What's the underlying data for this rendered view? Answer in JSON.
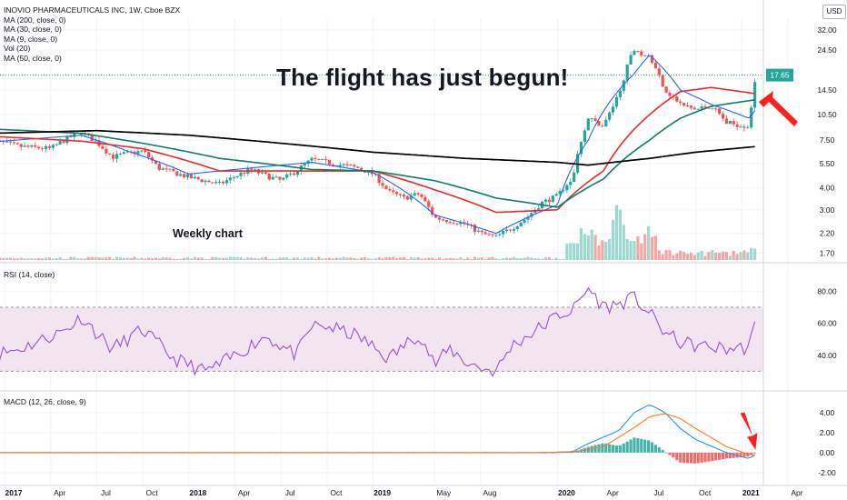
{
  "header": {
    "symbol_line": "INOVIO PHARMACEUTICALS INC, 1W, Cboe BZX",
    "indicators": [
      "MA (200, close, 0)",
      "MA (30, close, 0)",
      "MA (9, close, 0)",
      "Vol (20)",
      "MA (50, close, 0)"
    ],
    "currency": "USD"
  },
  "annotations": {
    "headline": "The flight has just begun!",
    "note": "Weekly chart",
    "arrow_color": "#ff1f1f"
  },
  "colors": {
    "up": "#26a69a",
    "down": "#ef5350",
    "ma9": "#2962ff",
    "ma30": "#e52b2b",
    "ma50": "#0f7d6a",
    "ma200": "#000000",
    "rsi": "#9c4fd6",
    "rsi_band": "#f3e5f0",
    "macd": "#2196f3",
    "signal": "#ff7a1f",
    "grid": "#f0f3fa",
    "last_price": "#26a69a"
  },
  "chart_data": [
    {
      "type": "candlestick",
      "title": "INOVIO PHARMACEUTICALS INC, 1W, Cboe BZX",
      "scale": "log",
      "x_ticks": [
        "2017",
        "Apr",
        "Jul",
        "Oct",
        "2018",
        "Apr",
        "Jul",
        "Oct",
        "2019",
        "May",
        "Aug",
        "2020",
        "Apr",
        "Jul",
        "Oct",
        "2021",
        "Apr"
      ],
      "x_tick_dates": [
        "2017-01",
        "2017-04",
        "2017-07",
        "2017-10",
        "2018-01",
        "2018-04",
        "2018-07",
        "2018-10",
        "2019-01",
        "2019-05",
        "2019-08",
        "2020-01",
        "2020-04",
        "2020-07",
        "2020-10",
        "2021-01",
        "2021-04"
      ],
      "y_ticks": [
        32.0,
        24.5,
        17.65,
        14.5,
        10.5,
        7.5,
        5.5,
        4.0,
        3.0,
        2.2,
        1.7
      ],
      "y_tick_labels": [
        "32.00",
        "24.50",
        "17.65",
        "14.50",
        "10.50",
        "7.50",
        "5.50",
        "4.00",
        "3.00",
        "2.20",
        "1.70"
      ],
      "last_price": 17.65,
      "close_anchors": [
        [
          "2016-12",
          7.5
        ],
        [
          "2017-02",
          6.9
        ],
        [
          "2017-04",
          6.7
        ],
        [
          "2017-05",
          7.6
        ],
        [
          "2017-06",
          8.3
        ],
        [
          "2017-07",
          7.3
        ],
        [
          "2017-08",
          6.0
        ],
        [
          "2017-09",
          6.3
        ],
        [
          "2017-10",
          6.5
        ],
        [
          "2017-11",
          5.2
        ],
        [
          "2018-01",
          4.6
        ],
        [
          "2018-03",
          4.2
        ],
        [
          "2018-05",
          5.1
        ],
        [
          "2018-06",
          4.7
        ],
        [
          "2018-07",
          4.4
        ],
        [
          "2018-08",
          5.0
        ],
        [
          "2018-09",
          5.8
        ],
        [
          "2018-10",
          5.6
        ],
        [
          "2018-12",
          5.2
        ],
        [
          "2019-01",
          4.8
        ],
        [
          "2019-02",
          3.8
        ],
        [
          "2019-03",
          3.5
        ],
        [
          "2019-04",
          3.7
        ],
        [
          "2019-05",
          2.7
        ],
        [
          "2019-06",
          2.6
        ],
        [
          "2019-07",
          2.5
        ],
        [
          "2019-08",
          2.2
        ],
        [
          "2019-09",
          2.1
        ],
        [
          "2019-10",
          2.35
        ],
        [
          "2019-11",
          2.7
        ],
        [
          "2019-12",
          3.3
        ],
        [
          "2020-01",
          3.6
        ],
        [
          "2020-02",
          4.6
        ],
        [
          "2020-03",
          10.0
        ],
        [
          "2020-04",
          9.0
        ],
        [
          "2020-05",
          13.5
        ],
        [
          "2020-06",
          25.0
        ],
        [
          "2020-07",
          22.0
        ],
        [
          "2020-08",
          14.5
        ],
        [
          "2020-09",
          12.0
        ],
        [
          "2020-10",
          11.2
        ],
        [
          "2020-11",
          11.8
        ],
        [
          "2020-12",
          9.4
        ],
        [
          "2021-01-15",
          9.0
        ],
        [
          "2021-01-30",
          17.65
        ]
      ],
      "moving_averages": [
        {
          "name": "MA (9, close, 0)",
          "points": [
            [
              "2016-12",
              7.3
            ],
            [
              "2017-06",
              8.0
            ],
            [
              "2017-09",
              6.5
            ],
            [
              "2018-01",
              4.8
            ],
            [
              "2018-09",
              5.6
            ],
            [
              "2019-01",
              4.9
            ],
            [
              "2019-05",
              2.8
            ],
            [
              "2019-09",
              2.2
            ],
            [
              "2020-01",
              3.2
            ],
            [
              "2020-03",
              7.5
            ],
            [
              "2020-06",
              18.0
            ],
            [
              "2020-07",
              23.0
            ],
            [
              "2020-09",
              14.5
            ],
            [
              "2020-11",
              12.0
            ],
            [
              "2021-01-15",
              10.0
            ],
            [
              "2021-01-30",
              11.3
            ]
          ]
        },
        {
          "name": "MA (30, close, 0)",
          "points": [
            [
              "2016-12",
              7.9
            ],
            [
              "2017-06",
              7.4
            ],
            [
              "2017-10",
              6.7
            ],
            [
              "2018-03",
              5.0
            ],
            [
              "2018-09",
              5.0
            ],
            [
              "2019-01",
              5.0
            ],
            [
              "2019-05",
              3.9
            ],
            [
              "2019-09",
              2.9
            ],
            [
              "2020-01",
              3.0
            ],
            [
              "2020-04",
              5.0
            ],
            [
              "2020-07",
              10.5
            ],
            [
              "2020-09",
              14.2
            ],
            [
              "2020-11",
              15.0
            ],
            [
              "2021-01-15",
              14.0
            ],
            [
              "2021-01-30",
              13.8
            ]
          ]
        },
        {
          "name": "MA (50, close, 0)",
          "points": [
            [
              "2016-12",
              8.7
            ],
            [
              "2017-06",
              8.2
            ],
            [
              "2017-10",
              7.2
            ],
            [
              "2018-03",
              5.9
            ],
            [
              "2018-09",
              5.1
            ],
            [
              "2019-01",
              5.0
            ],
            [
              "2019-05",
              4.4
            ],
            [
              "2019-09",
              3.5
            ],
            [
              "2020-01",
              3.1
            ],
            [
              "2020-04",
              4.5
            ],
            [
              "2020-07",
              7.5
            ],
            [
              "2020-09",
              10.0
            ],
            [
              "2020-11",
              11.7
            ],
            [
              "2021-01-15",
              12.6
            ],
            [
              "2021-01-30",
              12.8
            ]
          ]
        },
        {
          "name": "MA (200, close, 0)",
          "points": [
            [
              "2016-12",
              8.2
            ],
            [
              "2017-07",
              8.5
            ],
            [
              "2018-01",
              8.0
            ],
            [
              "2018-07",
              7.2
            ],
            [
              "2019-01",
              6.4
            ],
            [
              "2019-07",
              5.9
            ],
            [
              "2020-01",
              5.6
            ],
            [
              "2020-03",
              5.4
            ],
            [
              "2020-07",
              5.9
            ],
            [
              "2020-10",
              6.4
            ],
            [
              "2021-01-30",
              6.9
            ]
          ]
        }
      ],
      "volume_spikes": [
        [
          "2020-02",
          0.3
        ],
        [
          "2020-03",
          0.5
        ],
        [
          "2020-04",
          0.35
        ],
        [
          "2020-05",
          0.9
        ],
        [
          "2020-06",
          0.4
        ],
        [
          "2020-07",
          0.6
        ],
        [
          "2021-01-30",
          0.25
        ]
      ]
    },
    {
      "type": "line",
      "title": "RSI (14, close)",
      "y_ticks": [
        80.0,
        60.0,
        40.0
      ],
      "y_tick_labels": [
        "80.00",
        "60.00",
        "40.00"
      ],
      "band": [
        30,
        70
      ],
      "values": [
        [
          "2016-12",
          40
        ],
        [
          "2017-02",
          44
        ],
        [
          "2017-05",
          56
        ],
        [
          "2017-06",
          64
        ],
        [
          "2017-08",
          44
        ],
        [
          "2017-09",
          50
        ],
        [
          "2017-10",
          56
        ],
        [
          "2017-12",
          38
        ],
        [
          "2018-02",
          30
        ],
        [
          "2018-03",
          34
        ],
        [
          "2018-06",
          52
        ],
        [
          "2018-08",
          40
        ],
        [
          "2018-09",
          58
        ],
        [
          "2018-10",
          58
        ],
        [
          "2018-12",
          52
        ],
        [
          "2019-02",
          38
        ],
        [
          "2019-04",
          54
        ],
        [
          "2019-05",
          34
        ],
        [
          "2019-06",
          44
        ],
        [
          "2019-07",
          36
        ],
        [
          "2019-08",
          32
        ],
        [
          "2019-09",
          30
        ],
        [
          "2019-10",
          46
        ],
        [
          "2019-12",
          58
        ],
        [
          "2020-01",
          65
        ],
        [
          "2020-02",
          68
        ],
        [
          "2020-03",
          82
        ],
        [
          "2020-04",
          70
        ],
        [
          "2020-05",
          72
        ],
        [
          "2020-06",
          76
        ],
        [
          "2020-07",
          66
        ],
        [
          "2020-08",
          54
        ],
        [
          "2020-09",
          48
        ],
        [
          "2020-10",
          46
        ],
        [
          "2020-12",
          44
        ],
        [
          "2021-01-15",
          45
        ],
        [
          "2021-01-30",
          62
        ]
      ]
    },
    {
      "type": "line",
      "title": "MACD (12, 26, close, 9)",
      "y_ticks": [
        4.0,
        2.0,
        0.0,
        -2.0
      ],
      "y_tick_labels": [
        "4.00",
        "2.00",
        "0.00",
        "-2.00"
      ],
      "series": [
        {
          "name": "MACD",
          "values": [
            [
              "2016-12",
              0.0
            ],
            [
              "2019-12",
              0.0
            ],
            [
              "2020-02",
              0.1
            ],
            [
              "2020-03",
              0.9
            ],
            [
              "2020-05",
              2.2
            ],
            [
              "2020-06",
              4.0
            ],
            [
              "2020-07",
              4.8
            ],
            [
              "2020-08",
              4.0
            ],
            [
              "2020-09",
              2.4
            ],
            [
              "2020-10",
              1.3
            ],
            [
              "2020-12",
              0.0
            ],
            [
              "2021-01-15",
              -0.6
            ],
            [
              "2021-01-30",
              -0.15
            ]
          ]
        },
        {
          "name": "Signal",
          "values": [
            [
              "2016-12",
              0.0
            ],
            [
              "2019-12",
              0.0
            ],
            [
              "2020-02",
              0.05
            ],
            [
              "2020-04",
              0.6
            ],
            [
              "2020-06",
              2.5
            ],
            [
              "2020-07",
              3.6
            ],
            [
              "2020-08",
              3.9
            ],
            [
              "2020-09",
              3.4
            ],
            [
              "2020-10",
              2.4
            ],
            [
              "2020-12",
              0.6
            ],
            [
              "2021-01-15",
              -0.2
            ],
            [
              "2021-01-30",
              -0.25
            ]
          ]
        }
      ]
    }
  ]
}
